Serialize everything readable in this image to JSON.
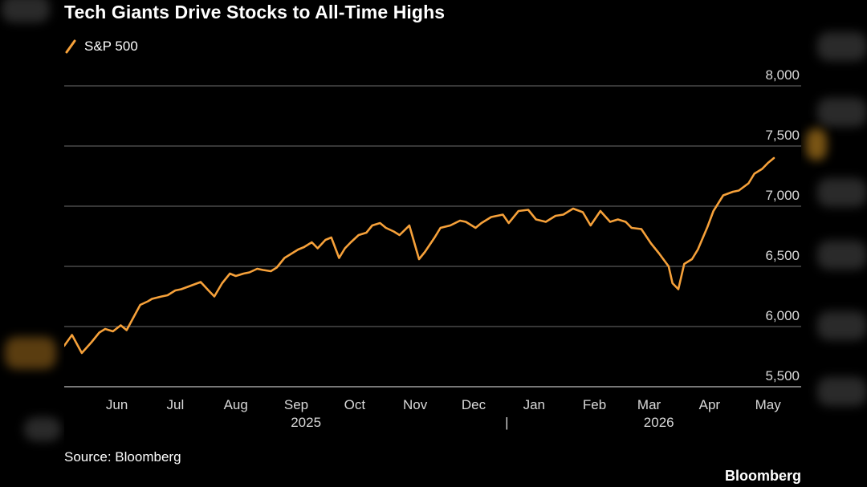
{
  "title": "Tech Giants Drive Stocks to All-Time Highs",
  "source": "Source: Bloomberg",
  "brand": "Bloomberg",
  "colors": {
    "series": "#f6a13a",
    "grid": "#6e6e6e",
    "axis": "#bfbfbf",
    "text": "#d9d9d9",
    "background": "#000000"
  },
  "chart_data": {
    "type": "line",
    "title": "Tech Giants Drive Stocks to All-Time Highs",
    "xlabel": "",
    "ylabel": "",
    "ylim": [
      5500,
      8000
    ],
    "yticks": [
      5500,
      6000,
      6500,
      7000,
      7500,
      8000
    ],
    "ytick_labels": [
      "5,500",
      "6,000",
      "6,500",
      "7,000",
      "7,500",
      "8,000"
    ],
    "grid": true,
    "y_axis_side": "right",
    "legend": "top-left",
    "month_labels": [
      "Jun",
      "Jul",
      "Aug",
      "Sep",
      "Oct",
      "Nov",
      "Dec",
      "Jan",
      "Feb",
      "Mar",
      "Apr",
      "May"
    ],
    "month_label_dates": [
      "2025-06-15",
      "2025-07-15",
      "2025-08-15",
      "2025-09-15",
      "2025-10-15",
      "2025-11-15",
      "2025-12-15",
      "2026-01-15",
      "2026-02-15",
      "2026-03-15",
      "2026-04-15",
      "2026-05-15"
    ],
    "year_labels": [
      {
        "label": "2025",
        "date": "2025-09-20"
      },
      {
        "label": "2026",
        "date": "2026-03-20"
      }
    ],
    "year_separator": "|",
    "year_separator_date": "2026-01-01",
    "x_range": [
      "2025-05-19",
      "2026-06-01"
    ],
    "series": [
      {
        "name": "S&P 500",
        "x": [
          "2025-05-19",
          "2025-05-23",
          "2025-05-28",
          "2025-06-02",
          "2025-06-06",
          "2025-06-09",
          "2025-06-13",
          "2025-06-17",
          "2025-06-20",
          "2025-06-24",
          "2025-06-27",
          "2025-07-01",
          "2025-07-03",
          "2025-07-08",
          "2025-07-11",
          "2025-07-15",
          "2025-07-18",
          "2025-07-23",
          "2025-07-28",
          "2025-08-01",
          "2025-08-04",
          "2025-08-08",
          "2025-08-12",
          "2025-08-15",
          "2025-08-19",
          "2025-08-22",
          "2025-08-26",
          "2025-08-29",
          "2025-09-02",
          "2025-09-05",
          "2025-09-09",
          "2025-09-12",
          "2025-09-16",
          "2025-09-19",
          "2025-09-23",
          "2025-09-26",
          "2025-09-30",
          "2025-10-03",
          "2025-10-07",
          "2025-10-10",
          "2025-10-13",
          "2025-10-17",
          "2025-10-21",
          "2025-10-24",
          "2025-10-28",
          "2025-10-31",
          "2025-11-04",
          "2025-11-07",
          "2025-11-12",
          "2025-11-17",
          "2025-11-20",
          "2025-11-25",
          "2025-11-28",
          "2025-12-03",
          "2025-12-08",
          "2025-12-11",
          "2025-12-16",
          "2025-12-19",
          "2025-12-24",
          "2025-12-30",
          "2026-01-02",
          "2026-01-07",
          "2026-01-12",
          "2026-01-16",
          "2026-01-21",
          "2026-01-26",
          "2026-01-30",
          "2026-02-04",
          "2026-02-09",
          "2026-02-13",
          "2026-02-18",
          "2026-02-23",
          "2026-02-27",
          "2026-03-03",
          "2026-03-06",
          "2026-03-11",
          "2026-03-16",
          "2026-03-20",
          "2026-03-25",
          "2026-03-27",
          "2026-03-30",
          "2026-04-02",
          "2026-04-06",
          "2026-04-09",
          "2026-04-14",
          "2026-04-17",
          "2026-04-22",
          "2026-04-27",
          "2026-04-30",
          "2026-05-05",
          "2026-05-08",
          "2026-05-12",
          "2026-05-15",
          "2026-05-18"
        ],
        "y": [
          5840,
          5930,
          5780,
          5870,
          5950,
          5980,
          5960,
          6010,
          5970,
          6090,
          6180,
          6210,
          6230,
          6250,
          6260,
          6300,
          6310,
          6340,
          6370,
          6300,
          6250,
          6360,
          6440,
          6420,
          6440,
          6450,
          6480,
          6470,
          6460,
          6490,
          6570,
          6600,
          6640,
          6660,
          6700,
          6650,
          6720,
          6740,
          6570,
          6650,
          6700,
          6760,
          6780,
          6840,
          6860,
          6820,
          6790,
          6760,
          6840,
          6560,
          6620,
          6740,
          6820,
          6840,
          6880,
          6870,
          6820,
          6860,
          6910,
          6930,
          6860,
          6960,
          6970,
          6890,
          6870,
          6920,
          6930,
          6980,
          6950,
          6840,
          6960,
          6870,
          6890,
          6870,
          6820,
          6810,
          6690,
          6610,
          6500,
          6360,
          6310,
          6520,
          6560,
          6640,
          6830,
          6960,
          7090,
          7120,
          7130,
          7190,
          7270,
          7310,
          7360,
          7400
        ]
      }
    ]
  }
}
